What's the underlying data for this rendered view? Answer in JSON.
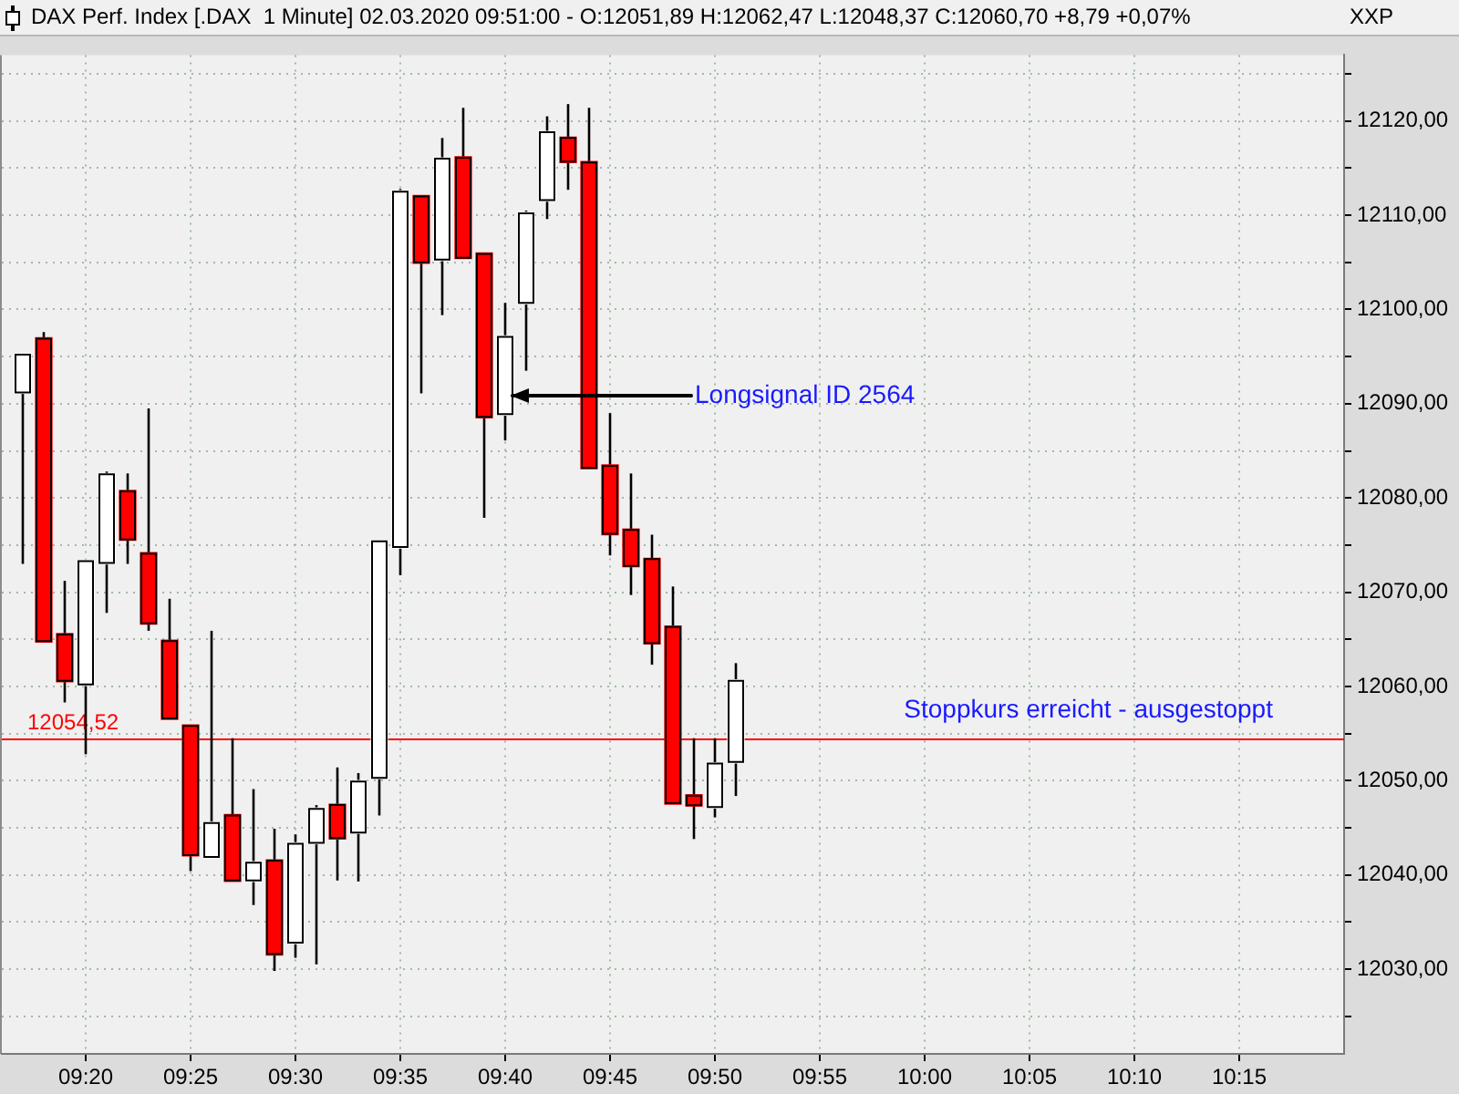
{
  "chart_data": {
    "type": "candlestick",
    "title": "DAX Perf. Index [.DAX  1 Minute] 02.03.2020 09:51:00 - O:12051,89 H:12062,47 L:12048,37 C:12060,70 +8,79 +0,07%",
    "x": [
      "2020-03-02T09:17",
      "2020-03-02T09:18",
      "2020-03-02T09:19",
      "2020-03-02T09:20",
      "2020-03-02T09:21",
      "2020-03-02T09:22",
      "2020-03-02T09:23",
      "2020-03-02T09:24",
      "2020-03-02T09:25",
      "2020-03-02T09:26",
      "2020-03-02T09:27",
      "2020-03-02T09:28",
      "2020-03-02T09:29",
      "2020-03-02T09:30",
      "2020-03-02T09:31",
      "2020-03-02T09:32",
      "2020-03-02T09:33",
      "2020-03-02T09:34",
      "2020-03-02T09:35",
      "2020-03-02T09:36",
      "2020-03-02T09:37",
      "2020-03-02T09:38",
      "2020-03-02T09:39",
      "2020-03-02T09:40",
      "2020-03-02T09:41",
      "2020-03-02T09:42",
      "2020-03-02T09:43",
      "2020-03-02T09:44",
      "2020-03-02T09:45",
      "2020-03-02T09:46",
      "2020-03-02T09:47",
      "2020-03-02T09:48",
      "2020-03-02T09:49",
      "2020-03-02T09:50",
      "2020-03-02T09:51"
    ],
    "ohlc": [
      [
        12091.1,
        12095.3,
        12073.0,
        12095.3
      ],
      [
        12097.0,
        12097.6,
        12064.7,
        12064.7
      ],
      [
        12065.6,
        12071.2,
        12058.3,
        12060.5
      ],
      [
        12060.1,
        12073.4,
        12052.8,
        12073.4
      ],
      [
        12073.0,
        12082.8,
        12067.8,
        12082.6
      ],
      [
        12080.8,
        12082.6,
        12073.0,
        12075.5
      ],
      [
        12074.2,
        12089.5,
        12065.9,
        12066.6
      ],
      [
        12064.9,
        12069.3,
        12056.5,
        12056.5
      ],
      [
        12055.9,
        12055.9,
        12040.4,
        12042.0
      ],
      [
        12041.8,
        12065.9,
        12041.8,
        12045.6
      ],
      [
        12046.4,
        12054.5,
        12039.3,
        12039.3
      ],
      [
        12039.3,
        12049.1,
        12036.8,
        12041.4
      ],
      [
        12041.6,
        12044.9,
        12029.8,
        12031.5
      ],
      [
        12032.7,
        12044.3,
        12031.2,
        12043.4
      ],
      [
        12043.3,
        12047.4,
        12030.5,
        12047.1
      ],
      [
        12047.5,
        12051.4,
        12039.4,
        12043.8
      ],
      [
        12044.4,
        12050.8,
        12039.3,
        12050.0
      ],
      [
        12050.2,
        12075.5,
        12046.3,
        12075.5
      ],
      [
        12074.7,
        12112.8,
        12071.8,
        12112.6
      ],
      [
        12112.1,
        12112.1,
        12091.1,
        12104.9
      ],
      [
        12105.2,
        12118.2,
        12099.4,
        12116.1
      ],
      [
        12116.2,
        12121.4,
        12105.4,
        12105.4
      ],
      [
        12106.0,
        12106.0,
        12077.9,
        12088.5
      ],
      [
        12088.8,
        12100.7,
        12086.1,
        12097.2
      ],
      [
        12100.6,
        12110.5,
        12093.5,
        12110.3
      ],
      [
        12111.5,
        12120.5,
        12109.6,
        12118.9
      ],
      [
        12118.3,
        12121.8,
        12112.7,
        12115.6
      ],
      [
        12115.7,
        12121.4,
        12083.1,
        12083.1
      ],
      [
        12083.5,
        12089.0,
        12073.9,
        12076.1
      ],
      [
        12076.7,
        12082.6,
        12069.7,
        12072.7
      ],
      [
        12073.6,
        12076.1,
        12062.3,
        12064.5
      ],
      [
        12066.4,
        12070.6,
        12047.5,
        12047.5
      ],
      [
        12048.5,
        12054.5,
        12043.8,
        12047.3
      ],
      [
        12047.1,
        12054.5,
        12046.1,
        12051.9
      ],
      [
        12051.89,
        12062.47,
        12048.37,
        12060.7
      ]
    ],
    "colors": [
      "#ffffff",
      "#ff0000",
      "#ff0000",
      "#ffffff",
      "#ffffff",
      "#ff0000",
      "#ff0000",
      "#ff0000",
      "#ff0000",
      "#ffffff",
      "#ff0000",
      "#ffffff",
      "#ff0000",
      "#ffffff",
      "#ffffff",
      "#ff0000",
      "#ffffff",
      "#ffffff",
      "#ffffff",
      "#ff0000",
      "#ffffff",
      "#ff0000",
      "#ff0000",
      "#ffffff",
      "#ffffff",
      "#ffffff",
      "#ff0000",
      "#ff0000",
      "#ff0000",
      "#ff0000",
      "#ff0000",
      "#ff0000",
      "#ff0000",
      "#ffffff",
      "#ffffff"
    ],
    "xlim": [
      "2020-03-02T09:16",
      "2020-03-02T10:20"
    ],
    "xticks": [
      {
        "value": "2020-03-02T09:20",
        "label": "09:20"
      },
      {
        "value": "2020-03-02T09:25",
        "label": "09:25"
      },
      {
        "value": "2020-03-02T09:30",
        "label": "09:30"
      },
      {
        "value": "2020-03-02T09:35",
        "label": "09:35"
      },
      {
        "value": "2020-03-02T09:40",
        "label": "09:40"
      },
      {
        "value": "2020-03-02T09:45",
        "label": "09:45"
      },
      {
        "value": "2020-03-02T09:50",
        "label": "09:50"
      },
      {
        "value": "2020-03-02T09:55",
        "label": "09:55"
      },
      {
        "value": "2020-03-02T10:00",
        "label": "10:00"
      },
      {
        "value": "2020-03-02T10:05",
        "label": "10:05"
      },
      {
        "value": "2020-03-02T10:10",
        "label": "10:10"
      },
      {
        "value": "2020-03-02T10:15",
        "label": "10:15"
      }
    ],
    "ylim": [
      12021,
      12127
    ],
    "yticks": [
      {
        "value": 12025,
        "label": null
      },
      {
        "value": 12030,
        "label": "12030,00"
      },
      {
        "value": 12035,
        "label": null
      },
      {
        "value": 12040,
        "label": "12040,00"
      },
      {
        "value": 12045,
        "label": null
      },
      {
        "value": 12050,
        "label": "12050,00"
      },
      {
        "value": 12055,
        "label": null
      },
      {
        "value": 12060,
        "label": "12060,00"
      },
      {
        "value": 12065,
        "label": null
      },
      {
        "value": 12070,
        "label": "12070,00"
      },
      {
        "value": 12075,
        "label": null
      },
      {
        "value": 12080,
        "label": "12080,00"
      },
      {
        "value": 12085,
        "label": null
      },
      {
        "value": 12090,
        "label": "12090,00"
      },
      {
        "value": 12095,
        "label": null
      },
      {
        "value": 12100,
        "label": "12100,00"
      },
      {
        "value": 12105,
        "label": null
      },
      {
        "value": 12110,
        "label": "12110,00"
      },
      {
        "value": 12115,
        "label": null
      },
      {
        "value": 12120,
        "label": "12120,00"
      },
      {
        "value": 12125,
        "label": null
      }
    ],
    "grid": true,
    "ref_lines": [
      {
        "axis": "y",
        "value": 12054.52,
        "label": "12054,52",
        "color": "#ff0000"
      }
    ],
    "annotations": [
      "XXP",
      {
        "text": "Longsignal ID 2564",
        "x": "2020-03-02T09:40",
        "y": 12090.8
      },
      {
        "text": "Stoppkurs erreicht - ausgestoppt",
        "y": 12054.52
      }
    ]
  }
}
